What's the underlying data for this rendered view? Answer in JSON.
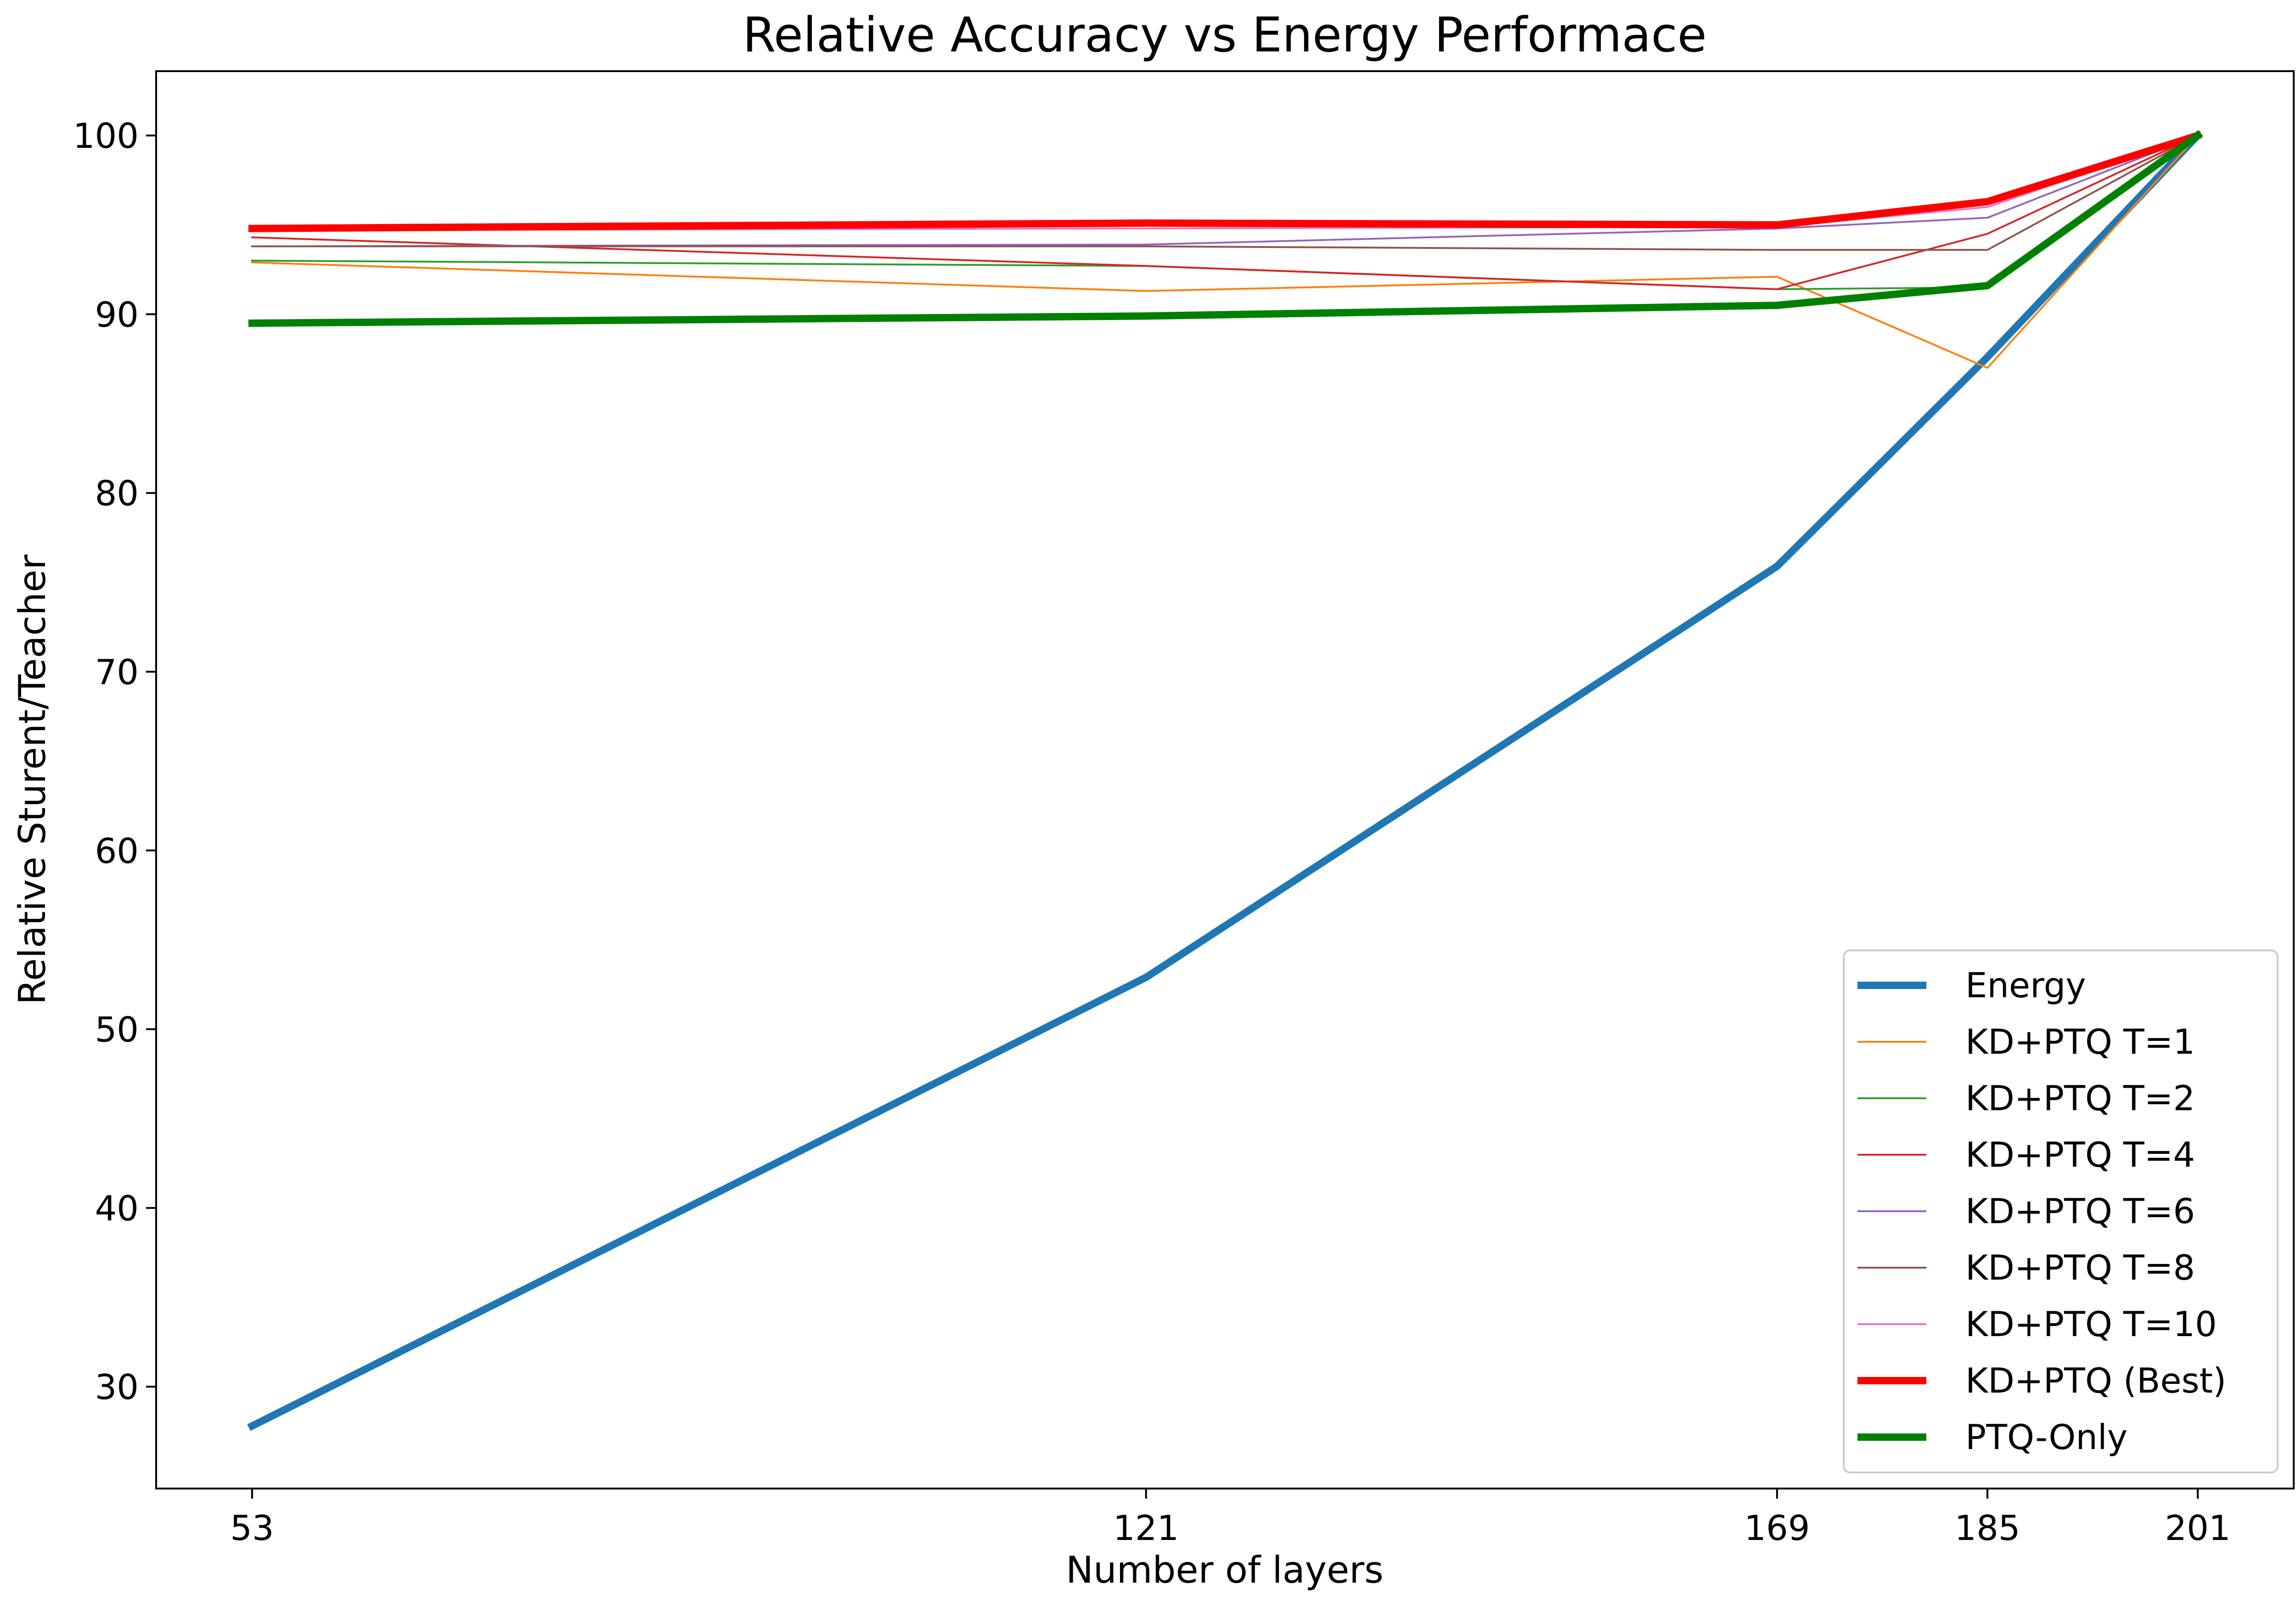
{
  "chart_data": {
    "type": "line",
    "title": "Relative Accuracy vs Energy Performace",
    "xlabel": "Number of layers",
    "ylabel": "Relative Sturent/Teacher",
    "x": [
      53,
      121,
      169,
      185,
      201
    ],
    "x_tick_labels": [
      "53",
      "121",
      "169",
      "185",
      "201"
    ],
    "xlim": [
      45.7,
      208.3
    ],
    "ylim": [
      24.3,
      103.6
    ],
    "y_ticks": [
      30,
      40,
      50,
      60,
      70,
      80,
      90,
      100
    ],
    "y_tick_labels": [
      "30",
      "40",
      "50",
      "60",
      "70",
      "80",
      "90",
      "100"
    ],
    "grid": false,
    "legend_position": "lower-right",
    "series": [
      {
        "name": "Energy",
        "color": "#1f77b4",
        "width": "thick",
        "values": [
          27.8,
          52.9,
          75.9,
          87.6,
          100.0
        ]
      },
      {
        "name": "KD+PTQ T=1",
        "color": "#ff7f0e",
        "width": "thin",
        "values": [
          92.9,
          91.3,
          92.1,
          87.0,
          100.0
        ]
      },
      {
        "name": "KD+PTQ T=2",
        "color": "#2ca02c",
        "width": "thin",
        "values": [
          93.0,
          92.7,
          91.4,
          91.5,
          100.0
        ]
      },
      {
        "name": "KD+PTQ T=4",
        "color": "#d62728",
        "width": "thin",
        "values": [
          94.3,
          92.7,
          91.4,
          94.5,
          100.0
        ]
      },
      {
        "name": "KD+PTQ T=6",
        "color": "#9467bd",
        "width": "thin",
        "values": [
          93.8,
          93.9,
          94.8,
          95.4,
          100.0
        ]
      },
      {
        "name": "KD+PTQ T=8",
        "color": "#8c564b",
        "width": "thin",
        "values": [
          93.8,
          93.8,
          93.6,
          93.6,
          100.0
        ]
      },
      {
        "name": "KD+PTQ T=10",
        "color": "#e377c2",
        "width": "thin",
        "values": [
          94.7,
          94.8,
          94.9,
          96.0,
          100.0
        ]
      },
      {
        "name": "KD+PTQ (Best)",
        "color": "#ff0000",
        "width": "thick",
        "values": [
          94.8,
          95.1,
          95.0,
          96.3,
          100.0
        ]
      },
      {
        "name": "PTQ-Only",
        "color": "#008000",
        "width": "thick",
        "values": [
          89.5,
          89.9,
          90.5,
          91.6,
          100.0
        ]
      }
    ]
  }
}
